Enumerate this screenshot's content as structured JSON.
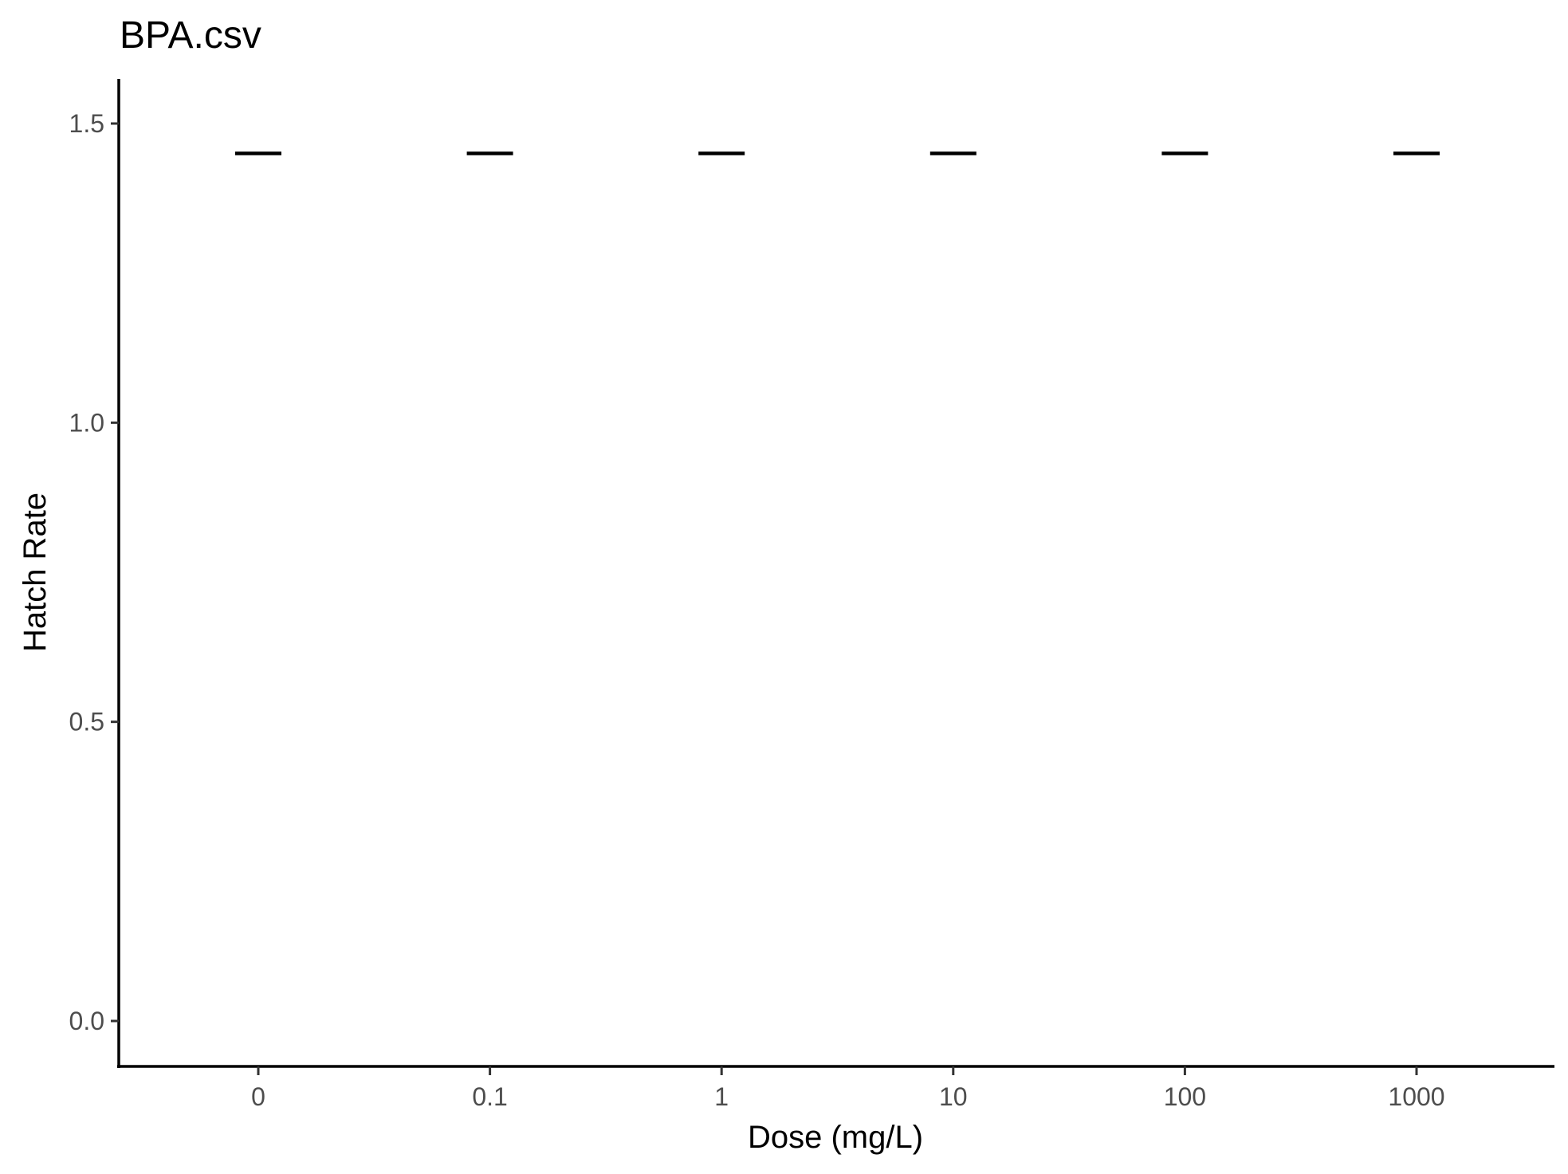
{
  "chart_data": {
    "type": "scatter",
    "title": "BPA.csv",
    "xlabel": "Dose (mg/L)",
    "ylabel": "Hatch Rate",
    "categories": [
      "0",
      "0.1",
      "1",
      "10",
      "100",
      "1000"
    ],
    "values": [
      1.45,
      1.45,
      1.45,
      1.45,
      1.45,
      1.45
    ],
    "ylim": [
      -0.07,
      1.58
    ],
    "yticks": [
      "0.0",
      "0.5",
      "1.0",
      "1.5"
    ],
    "marker": "horizontal-dash",
    "grid": false,
    "legend": "none"
  },
  "colors": {
    "background": "#ffffff",
    "axis": "#000000",
    "tick_label": "#4d4d4d",
    "mark": "#000000"
  }
}
